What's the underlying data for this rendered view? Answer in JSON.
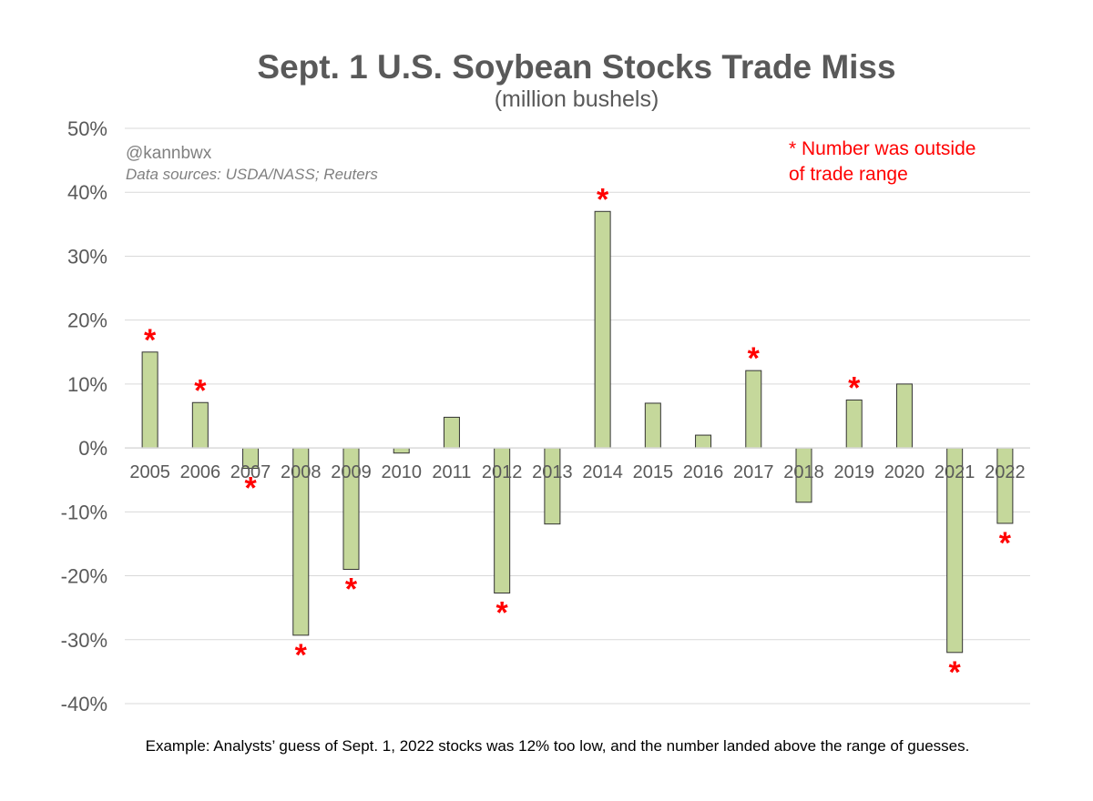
{
  "chart_data": {
    "type": "bar",
    "title": "Sept. 1 U.S. Soybean Stocks Trade Miss",
    "subtitle": "(million bushels)",
    "categories": [
      "2005",
      "2006",
      "2007",
      "2008",
      "2009",
      "2010",
      "2011",
      "2012",
      "2013",
      "2014",
      "2015",
      "2016",
      "2017",
      "2018",
      "2019",
      "2020",
      "2021",
      "2022"
    ],
    "values": [
      15.0,
      7.1,
      -3.2,
      -29.3,
      -19.0,
      -0.8,
      4.8,
      -22.7,
      -11.9,
      37.0,
      7.0,
      2.0,
      12.1,
      -8.5,
      7.5,
      10.0,
      -32.0,
      -11.8
    ],
    "outside_range": [
      true,
      true,
      true,
      true,
      true,
      false,
      false,
      true,
      false,
      true,
      false,
      false,
      true,
      false,
      true,
      false,
      true,
      true
    ],
    "marker_symbol": "*",
    "ylim": [
      -40,
      50
    ],
    "yticks": [
      "50%",
      "40%",
      "30%",
      "20%",
      "10%",
      "0%",
      "-10%",
      "-20%",
      "-30%",
      "-40%"
    ],
    "ytick_values": [
      50,
      40,
      30,
      20,
      10,
      0,
      -10,
      -20,
      -30,
      -40
    ],
    "y_unit": "percent",
    "grid": true,
    "colors": {
      "bar_fill": "#c5d89b",
      "bar_stroke": "#333333",
      "marker": "#ff0000",
      "grid": "#d9d9d9",
      "note_red": "#ff0000"
    },
    "annotations": {
      "credit": "@kannbwx",
      "sources": "Data sources: USDA/NASS; Reuters",
      "legend_note_line1": "* Number was outside",
      "legend_note_line2": "of trade range",
      "footnote": "Example: Analysts’ guess of Sept. 1, 2022 stocks was 12% too low, and the number landed above the range of guesses."
    }
  }
}
